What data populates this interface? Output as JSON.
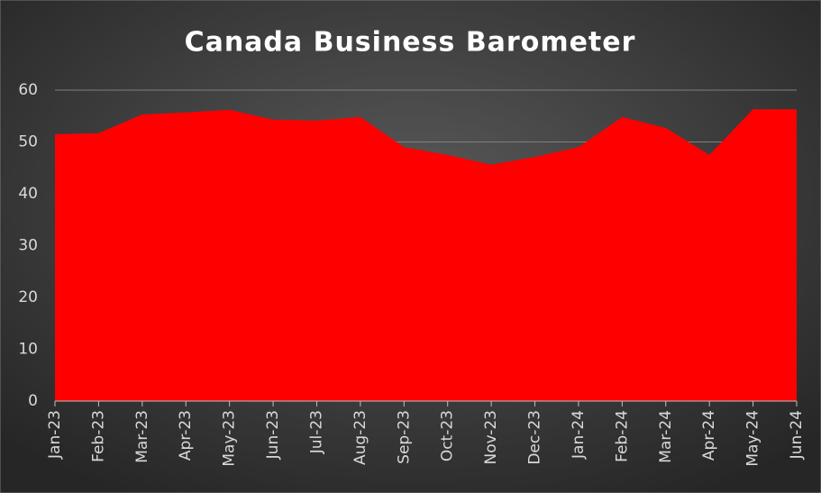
{
  "chart_data": {
    "type": "area",
    "title": "Canada Business Barometer",
    "categories": [
      "Jan-23",
      "Feb-23",
      "Mar-23",
      "Apr-23",
      "May-23",
      "Jun-23",
      "Jul-23",
      "Aug-23",
      "Sep-23",
      "Oct-23",
      "Nov-23",
      "Dec-23",
      "Jan-24",
      "Feb-24",
      "Mar-24",
      "Apr-24",
      "May-24",
      "Jun-24"
    ],
    "values": [
      51.5,
      51.7,
      55.3,
      55.7,
      56.2,
      54.3,
      54.1,
      54.8,
      49.0,
      47.5,
      45.6,
      47.1,
      49.0,
      54.8,
      52.7,
      47.5,
      56.3,
      56.3
    ],
    "color": "#ff0000",
    "ylim": [
      0,
      60
    ],
    "yticks": [
      0,
      10,
      20,
      30,
      40,
      50,
      60
    ],
    "grid": true
  }
}
